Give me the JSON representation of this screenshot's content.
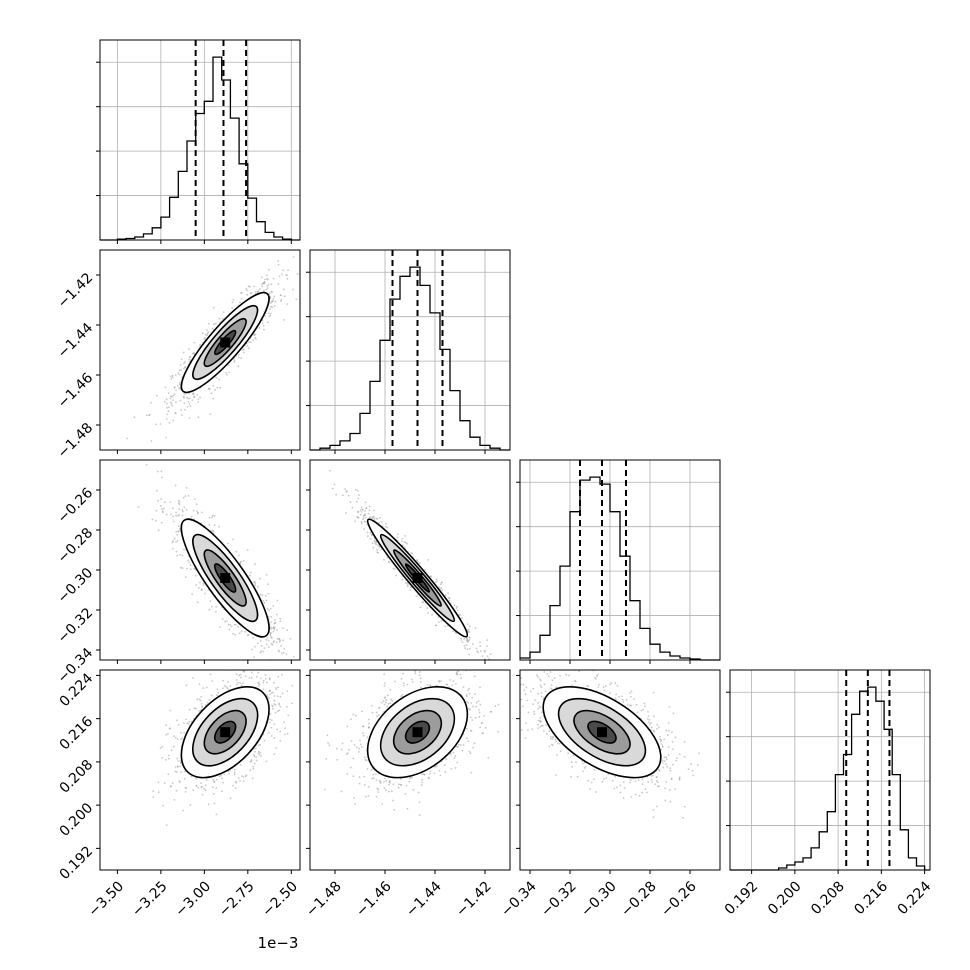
{
  "chart_data": {
    "type": "corner",
    "title": "",
    "offset_label": "1e−3",
    "grid": true,
    "parameters": [
      {
        "range": [
          -3.6,
          -2.45
        ],
        "ticks": [
          -3.5,
          -3.25,
          -3.0,
          -2.75,
          -2.5
        ],
        "tick_labels": [
          "−3.50",
          "−3.25",
          "−3.00",
          "−2.75",
          "−2.50"
        ],
        "quantiles": [
          -3.05,
          -2.89,
          -2.76
        ],
        "hist_bins": [
          -3.6,
          -3.55,
          -3.5,
          -3.45,
          -3.4,
          -3.35,
          -3.3,
          -3.25,
          -3.2,
          -3.15,
          -3.1,
          -3.05,
          -3.0,
          -2.95,
          -2.9,
          -2.85,
          -2.8,
          -2.75,
          -2.7,
          -2.65,
          -2.6,
          -2.55,
          -2.5,
          -2.45
        ],
        "hist_values": [
          0,
          0,
          1,
          2,
          4,
          8,
          16,
          30,
          56,
          90,
          130,
          166,
          182,
          240,
          210,
          160,
          100,
          55,
          24,
          10,
          4,
          1,
          0
        ]
      },
      {
        "range": [
          -1.49,
          -1.41
        ],
        "ticks": [
          -1.48,
          -1.46,
          -1.44,
          -1.42
        ],
        "tick_labels": [
          "−1.48",
          "−1.46",
          "−1.44",
          "−1.42"
        ],
        "quantiles": [
          -1.457,
          -1.447,
          -1.437
        ],
        "hist_bins": [
          -1.49,
          -1.486,
          -1.482,
          -1.478,
          -1.474,
          -1.47,
          -1.466,
          -1.462,
          -1.458,
          -1.454,
          -1.45,
          -1.446,
          -1.442,
          -1.438,
          -1.434,
          -1.43,
          -1.426,
          -1.422,
          -1.418,
          -1.414,
          -1.41
        ],
        "hist_values": [
          0,
          2,
          5,
          10,
          18,
          40,
          75,
          120,
          165,
          190,
          200,
          180,
          150,
          110,
          65,
          32,
          14,
          5,
          2,
          0
        ]
      },
      {
        "range": [
          -0.345,
          -0.245
        ],
        "ticks": [
          -0.34,
          -0.32,
          -0.3,
          -0.28,
          -0.26
        ],
        "tick_labels": [
          "−0.34",
          "−0.32",
          "−0.30",
          "−0.28",
          "−0.26"
        ],
        "quantiles": [
          -0.315,
          -0.304,
          -0.292
        ],
        "hist_bins": [
          -0.345,
          -0.34,
          -0.335,
          -0.33,
          -0.325,
          -0.32,
          -0.315,
          -0.31,
          -0.305,
          -0.3,
          -0.295,
          -0.29,
          -0.285,
          -0.28,
          -0.275,
          -0.27,
          -0.265,
          -0.26,
          -0.255,
          -0.25,
          -0.245
        ],
        "hist_values": [
          2,
          8,
          25,
          55,
          95,
          150,
          182,
          185,
          178,
          150,
          105,
          60,
          32,
          16,
          8,
          4,
          2,
          1,
          0,
          0
        ]
      },
      {
        "range": [
          0.188,
          0.225
        ],
        "ticks": [
          0.192,
          0.2,
          0.208,
          0.216,
          0.224
        ],
        "tick_labels": [
          "0.192",
          "0.200",
          "0.208",
          "0.216",
          "0.224"
        ],
        "quantiles": [
          0.2095,
          0.2135,
          0.2175
        ],
        "hist_bins": [
          0.188,
          0.1895,
          0.191,
          0.1925,
          0.194,
          0.1955,
          0.197,
          0.1985,
          0.2,
          0.2015,
          0.203,
          0.2045,
          0.206,
          0.2075,
          0.209,
          0.2105,
          0.212,
          0.2135,
          0.215,
          0.2165,
          0.218,
          0.2195,
          0.221,
          0.2225,
          0.224,
          0.225
        ],
        "hist_values": [
          0,
          0,
          0,
          0,
          0,
          0,
          2,
          5,
          8,
          12,
          22,
          38,
          58,
          95,
          115,
          155,
          178,
          182,
          168,
          140,
          95,
          40,
          12,
          4,
          0
        ]
      }
    ],
    "pairs": [
      {
        "i": 1,
        "j": 0,
        "center": [
          -2.88,
          -1.447
        ],
        "sigma": [
          0.12,
          0.0095
        ],
        "rho": 0.88
      },
      {
        "i": 2,
        "j": 0,
        "center": [
          -2.88,
          -0.304
        ],
        "sigma": [
          0.12,
          0.014
        ],
        "rho": -0.85
      },
      {
        "i": 2,
        "j": 1,
        "center": [
          -1.447,
          -0.304
        ],
        "sigma": [
          0.0095,
          0.014
        ],
        "rho": -0.97
      },
      {
        "i": 3,
        "j": 0,
        "center": [
          -2.88,
          0.2135
        ],
        "sigma": [
          0.12,
          0.004
        ],
        "rho": 0.5
      },
      {
        "i": 3,
        "j": 1,
        "center": [
          -1.447,
          0.2135
        ],
        "sigma": [
          0.0095,
          0.004
        ],
        "rho": 0.4
      },
      {
        "i": 3,
        "j": 2,
        "center": [
          -0.304,
          0.2135
        ],
        "sigma": [
          0.014,
          0.004
        ],
        "rho": -0.55
      }
    ]
  }
}
